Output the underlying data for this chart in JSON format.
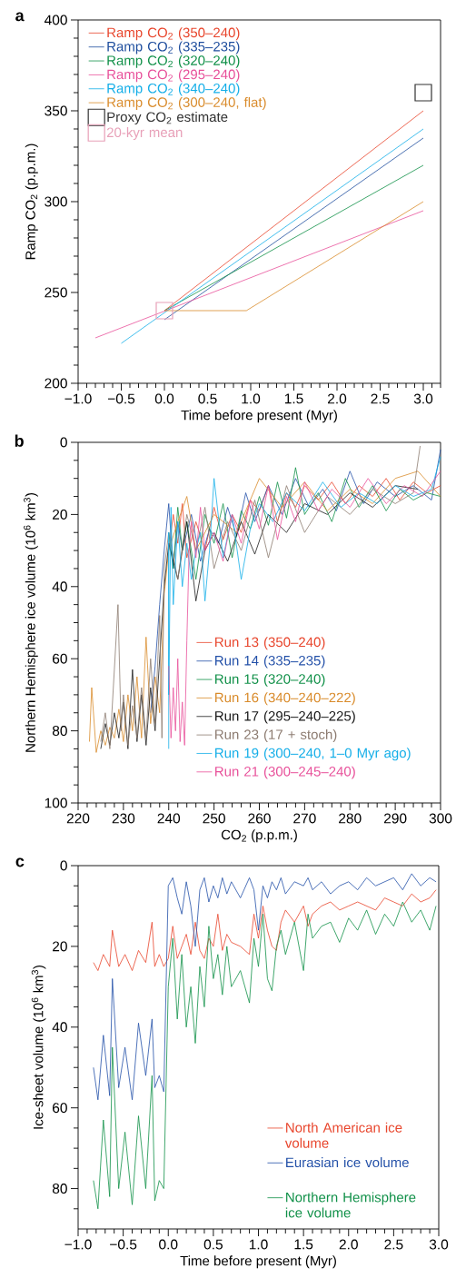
{
  "chart_data": [
    {
      "type": "line",
      "annotations": [
        "a"
      ],
      "xlabel": "Time before present (Myr)",
      "ylabel": "Ramp CO$_{2}$ (p.p.m.)",
      "xlim": [
        -1.0,
        3.2
      ],
      "ylim": [
        200,
        400
      ],
      "legend": "top left",
      "xticks": [
        {
          "value": -1.0,
          "label": "−1.0"
        },
        {
          "value": -0.9,
          "label": null
        },
        {
          "value": -0.8,
          "label": null
        },
        {
          "value": -0.7,
          "label": null
        },
        {
          "value": -0.6,
          "label": null
        },
        {
          "value": -0.5,
          "label": "−0.5"
        },
        {
          "value": -0.4,
          "label": null
        },
        {
          "value": -0.3,
          "label": null
        },
        {
          "value": -0.2,
          "label": null
        },
        {
          "value": -0.1,
          "label": null
        },
        {
          "value": 0.0,
          "label": "0.0"
        },
        {
          "value": 0.1,
          "label": null
        },
        {
          "value": 0.2,
          "label": null
        },
        {
          "value": 0.3,
          "label": null
        },
        {
          "value": 0.4,
          "label": null
        },
        {
          "value": 0.5,
          "label": "0.5"
        },
        {
          "value": 0.6,
          "label": null
        },
        {
          "value": 0.7,
          "label": null
        },
        {
          "value": 0.8,
          "label": null
        },
        {
          "value": 0.9,
          "label": null
        },
        {
          "value": 1.0,
          "label": "1.0"
        },
        {
          "value": 1.1,
          "label": null
        },
        {
          "value": 1.2,
          "label": null
        },
        {
          "value": 1.3,
          "label": null
        },
        {
          "value": 1.4,
          "label": null
        },
        {
          "value": 1.5,
          "label": "1.5"
        },
        {
          "value": 1.6,
          "label": null
        },
        {
          "value": 1.7,
          "label": null
        },
        {
          "value": 1.8,
          "label": null
        },
        {
          "value": 1.9,
          "label": null
        },
        {
          "value": 2.0,
          "label": "2.0"
        },
        {
          "value": 2.1,
          "label": null
        },
        {
          "value": 2.2,
          "label": null
        },
        {
          "value": 2.3,
          "label": null
        },
        {
          "value": 2.4,
          "label": null
        },
        {
          "value": 2.5,
          "label": "2.5"
        },
        {
          "value": 2.6,
          "label": null
        },
        {
          "value": 2.7,
          "label": null
        },
        {
          "value": 2.8,
          "label": null
        },
        {
          "value": 2.9,
          "label": null
        },
        {
          "value": 3.0,
          "label": "3.0"
        },
        {
          "value": 3.1,
          "label": null
        },
        {
          "value": 3.2,
          "label": null
        }
      ],
      "yticks": [
        200,
        {
          "value": 210,
          "label": null
        },
        {
          "value": 220,
          "label": null
        },
        {
          "value": 230,
          "label": null
        },
        {
          "value": 240,
          "label": null
        },
        250,
        {
          "value": 260,
          "label": null
        },
        {
          "value": 270,
          "label": null
        },
        {
          "value": 280,
          "label": null
        },
        {
          "value": 290,
          "label": null
        },
        300,
        {
          "value": 310,
          "label": null
        },
        {
          "value": 320,
          "label": null
        },
        {
          "value": 330,
          "label": null
        },
        {
          "value": 340,
          "label": null
        },
        350,
        {
          "value": 360,
          "label": null
        },
        {
          "value": 370,
          "label": null
        },
        {
          "value": 380,
          "label": null
        },
        {
          "value": 390,
          "label": null
        },
        400
      ],
      "series": [
        {
          "name": "Ramp CO$_{2}$ (350–240)",
          "color": "#e8452c",
          "x": [
            0.0,
            3.0
          ],
          "values": [
            240,
            350
          ]
        },
        {
          "name": "Ramp CO$_{2}$ (335–235)",
          "color": "#1f4e9e",
          "x": [
            0.0,
            3.0
          ],
          "values": [
            235,
            335
          ]
        },
        {
          "name": "Ramp CO$_{2}$ (320–240)",
          "color": "#109048",
          "x": [
            0.0,
            3.0
          ],
          "values": [
            240,
            320
          ]
        },
        {
          "name": "Ramp CO$_{2}$ (295–240)",
          "color": "#e8509a",
          "x": [
            -0.8,
            3.0
          ],
          "values": [
            225,
            295
          ]
        },
        {
          "name": "Ramp CO$_{2}$ (340–240)",
          "color": "#14aee8",
          "x": [
            -0.5,
            3.0
          ],
          "values": [
            222,
            340
          ]
        },
        {
          "name": "Ramp CO$_{2}$ (300–240, flat)",
          "color": "#d98b2b",
          "x": [
            0.0,
            0.95,
            3.0
          ],
          "values": [
            240,
            240,
            300
          ]
        },
        {
          "name": "Proxy CO$_{2}$ estimate",
          "type": "scatter",
          "marker": "square",
          "color": "#333333",
          "x": [
            3.0
          ],
          "values": [
            360
          ]
        },
        {
          "name": "20-kyr mean",
          "type": "scatter",
          "marker": "square",
          "color": "#e8a0b8",
          "x": [
            0.0
          ],
          "values": [
            240
          ]
        }
      ]
    },
    {
      "type": "line",
      "annotations": [
        "b"
      ],
      "xlabel": "CO$_{2}$ (p.p.m.)",
      "ylabel": "Northern Hemisphere ice volume (10$^{6}$ km$^{3}$)",
      "xlim": [
        220,
        300
      ],
      "ylim": [
        100,
        0
      ],
      "legend": "bottom right",
      "xticks": [
        220,
        {
          "value": 222,
          "label": null
        },
        {
          "value": 224,
          "label": null
        },
        {
          "value": 226,
          "label": null
        },
        {
          "value": 228,
          "label": null
        },
        230,
        {
          "value": 232,
          "label": null
        },
        {
          "value": 234,
          "label": null
        },
        {
          "value": 236,
          "label": null
        },
        {
          "value": 238,
          "label": null
        },
        240,
        {
          "value": 242,
          "label": null
        },
        {
          "value": 244,
          "label": null
        },
        {
          "value": 246,
          "label": null
        },
        {
          "value": 248,
          "label": null
        },
        250,
        {
          "value": 252,
          "label": null
        },
        {
          "value": 254,
          "label": null
        },
        {
          "value": 256,
          "label": null
        },
        {
          "value": 258,
          "label": null
        },
        260,
        {
          "value": 262,
          "label": null
        },
        {
          "value": 264,
          "label": null
        },
        {
          "value": 266,
          "label": null
        },
        {
          "value": 268,
          "label": null
        },
        270,
        {
          "value": 272,
          "label": null
        },
        {
          "value": 274,
          "label": null
        },
        {
          "value": 276,
          "label": null
        },
        {
          "value": 278,
          "label": null
        },
        280,
        {
          "value": 282,
          "label": null
        },
        {
          "value": 284,
          "label": null
        },
        {
          "value": 286,
          "label": null
        },
        {
          "value": 288,
          "label": null
        },
        290,
        {
          "value": 292,
          "label": null
        },
        {
          "value": 294,
          "label": null
        },
        {
          "value": 296,
          "label": null
        },
        {
          "value": 298,
          "label": null
        },
        300
      ],
      "yticks": [
        0,
        {
          "value": 5,
          "label": null
        },
        {
          "value": 10,
          "label": null
        },
        {
          "value": 15,
          "label": null
        },
        20,
        {
          "value": 25,
          "label": null
        },
        {
          "value": 30,
          "label": null
        },
        {
          "value": 35,
          "label": null
        },
        40,
        {
          "value": 45,
          "label": null
        },
        {
          "value": 50,
          "label": null
        },
        {
          "value": 55,
          "label": null
        },
        60,
        {
          "value": 65,
          "label": null
        },
        {
          "value": 70,
          "label": null
        },
        {
          "value": 75,
          "label": null
        },
        80,
        {
          "value": 85,
          "label": null
        },
        {
          "value": 90,
          "label": null
        },
        {
          "value": 95,
          "label": null
        },
        100
      ],
      "series": [
        {
          "name": "Run 13 (350–240)",
          "color": "#e8452c",
          "x": [
            240,
            241,
            242,
            243,
            244,
            246,
            248,
            250,
            252,
            254,
            256,
            258,
            260,
            262,
            264,
            266,
            268,
            270,
            273,
            276,
            279,
            282,
            285,
            288,
            291,
            294,
            297,
            300
          ],
          "values": [
            30,
            20,
            28,
            17,
            32,
            22,
            30,
            18,
            27,
            20,
            25,
            16,
            19,
            12,
            22,
            14,
            18,
            12,
            16,
            11,
            17,
            12,
            15,
            10,
            16,
            11,
            14,
            12
          ]
        },
        {
          "name": "Run 14 (335–235)",
          "color": "#2350a8",
          "x": [
            236,
            237,
            238,
            239,
            240,
            241,
            242,
            243,
            245,
            247,
            249,
            251,
            253,
            255,
            257,
            259,
            262,
            265,
            268,
            271,
            274,
            277,
            280,
            283,
            286,
            290,
            294,
            298,
            300
          ],
          "values": [
            75,
            62,
            45,
            30,
            17,
            35,
            22,
            30,
            20,
            33,
            24,
            28,
            18,
            26,
            14,
            22,
            12,
            20,
            10,
            18,
            13,
            19,
            8,
            17,
            11,
            15,
            12,
            16,
            2
          ]
        },
        {
          "name": "Run 15 (320–240)",
          "color": "#109048",
          "x": [
            240,
            241,
            242,
            243,
            244,
            246,
            248,
            250,
            252,
            254,
            256,
            258,
            260,
            262,
            264,
            266,
            268,
            270,
            273,
            276,
            279,
            282,
            285,
            288,
            291,
            294,
            297,
            300
          ],
          "values": [
            25,
            35,
            18,
            30,
            22,
            38,
            20,
            28,
            17,
            32,
            19,
            24,
            15,
            23,
            11,
            21,
            7,
            20,
            14,
            22,
            10,
            18,
            12,
            19,
            13,
            16,
            14,
            15
          ]
        },
        {
          "name": "Run 16 (340–240–222)",
          "color": "#d98b2b",
          "x": [
            222.5,
            223,
            224,
            225,
            226,
            227,
            228,
            229,
            230,
            231,
            232,
            233,
            234,
            235,
            236,
            237,
            238,
            239,
            240,
            242,
            244,
            246,
            250,
            255,
            260,
            265,
            270,
            275,
            280,
            285,
            290,
            295,
            300
          ],
          "values": [
            83,
            68,
            86,
            80,
            84,
            79,
            82,
            74,
            83,
            70,
            80,
            65,
            82,
            54,
            78,
            65,
            75,
            42,
            30,
            22,
            15,
            30,
            20,
            25,
            10,
            18,
            11,
            19,
            13,
            17,
            10,
            8,
            15
          ]
        },
        {
          "name": "Run 17 (295–240–225)",
          "color": "#1a1a1a",
          "x": [
            225,
            226,
            227,
            228,
            229,
            230,
            231,
            232,
            233,
            234,
            235,
            236,
            237,
            238,
            239,
            240,
            242,
            244,
            246,
            248,
            250,
            253,
            256,
            259,
            262,
            266,
            270,
            275,
            280,
            285,
            290,
            295
          ],
          "values": [
            85,
            78,
            84,
            75,
            82,
            72,
            85,
            63,
            83,
            70,
            84,
            68,
            80,
            60,
            40,
            28,
            38,
            22,
            44,
            30,
            25,
            33,
            22,
            31,
            20,
            25,
            17,
            20,
            14,
            18,
            12,
            13
          ]
        },
        {
          "name": "Run 23 (17 + stoch)",
          "color": "#8c7b70",
          "x": [
            225,
            226,
            227,
            228,
            228.8,
            229.5,
            230,
            231,
            232,
            233,
            234,
            235,
            236,
            237,
            238,
            238.5,
            239,
            240,
            242,
            244,
            246,
            248,
            250,
            253,
            256,
            259,
            262,
            266,
            270,
            275,
            280,
            285,
            290,
            294,
            295.5
          ],
          "values": [
            83,
            75,
            85,
            63,
            45,
            80,
            70,
            84,
            73,
            82,
            68,
            82,
            60,
            78,
            48,
            82,
            35,
            25,
            38,
            20,
            30,
            18,
            35,
            22,
            30,
            16,
            32,
            12,
            25,
            15,
            20,
            13,
            17,
            14,
            1
          ]
        },
        {
          "name": "Run 19 (300–240, 1–0 Myr ago)",
          "color": "#14aee8",
          "x": [
            240,
            240,
            240,
            240.5,
            241,
            242,
            243,
            244,
            245,
            246,
            247,
            248,
            249,
            250,
            252,
            254,
            256,
            258,
            260,
            263,
            266,
            270,
            274,
            278,
            282,
            286,
            290,
            294,
            298,
            300
          ],
          "values": [
            85,
            25,
            70,
            18,
            45,
            22,
            40,
            28,
            38,
            30,
            25,
            44,
            30,
            10,
            32,
            20,
            38,
            24,
            17,
            22,
            14,
            19,
            11,
            18,
            14,
            17,
            12,
            15,
            13,
            4
          ]
        },
        {
          "name": "Run 21 (300–245–240)",
          "color": "#e8509a",
          "x": [
            240,
            240.5,
            241,
            241.5,
            242,
            242.5,
            243,
            243.5,
            244,
            244.5,
            245,
            246,
            247,
            248,
            250,
            252,
            254,
            256,
            258,
            260,
            262,
            264,
            266,
            268,
            270,
            273,
            276,
            280,
            284,
            288,
            292,
            296,
            300
          ],
          "values": [
            62,
            82,
            68,
            80,
            60,
            83,
            72,
            84,
            55,
            30,
            22,
            32,
            18,
            30,
            25,
            33,
            20,
            28,
            16,
            24,
            12,
            27,
            15,
            22,
            11,
            19,
            13,
            18,
            10,
            17,
            12,
            15,
            8
          ]
        }
      ]
    },
    {
      "type": "line",
      "annotations": [
        "c"
      ],
      "xlabel": "Time before present (Myr)",
      "ylabel": "Ice-sheet volume (10$^{6}$ km$^{3}$)",
      "xlim": [
        -1.0,
        3.0
      ],
      "ylim": [
        90,
        0
      ],
      "legend": "bottom right",
      "xticks": [
        {
          "value": -1.0,
          "label": "−1.0"
        },
        {
          "value": -0.9,
          "label": null
        },
        {
          "value": -0.8,
          "label": null
        },
        {
          "value": -0.7,
          "label": null
        },
        {
          "value": -0.6,
          "label": null
        },
        {
          "value": -0.5,
          "label": "−0.5"
        },
        {
          "value": -0.4,
          "label": null
        },
        {
          "value": -0.3,
          "label": null
        },
        {
          "value": -0.2,
          "label": null
        },
        {
          "value": -0.1,
          "label": null
        },
        {
          "value": 0.0,
          "label": "0.0"
        },
        {
          "value": 0.1,
          "label": null
        },
        {
          "value": 0.2,
          "label": null
        },
        {
          "value": 0.3,
          "label": null
        },
        {
          "value": 0.4,
          "label": null
        },
        {
          "value": 0.5,
          "label": "0.5"
        },
        {
          "value": 0.6,
          "label": null
        },
        {
          "value": 0.7,
          "label": null
        },
        {
          "value": 0.8,
          "label": null
        },
        {
          "value": 0.9,
          "label": null
        },
        {
          "value": 1.0,
          "label": "1.0"
        },
        {
          "value": 1.1,
          "label": null
        },
        {
          "value": 1.2,
          "label": null
        },
        {
          "value": 1.3,
          "label": null
        },
        {
          "value": 1.4,
          "label": null
        },
        {
          "value": 1.5,
          "label": "1.5"
        },
        {
          "value": 1.6,
          "label": null
        },
        {
          "value": 1.7,
          "label": null
        },
        {
          "value": 1.8,
          "label": null
        },
        {
          "value": 1.9,
          "label": null
        },
        {
          "value": 2.0,
          "label": "2.0"
        },
        {
          "value": 2.1,
          "label": null
        },
        {
          "value": 2.2,
          "label": null
        },
        {
          "value": 2.3,
          "label": null
        },
        {
          "value": 2.4,
          "label": null
        },
        {
          "value": 2.5,
          "label": "2.5"
        },
        {
          "value": 2.6,
          "label": null
        },
        {
          "value": 2.7,
          "label": null
        },
        {
          "value": 2.8,
          "label": null
        },
        {
          "value": 2.9,
          "label": null
        },
        {
          "value": 3.0,
          "label": "3.0"
        }
      ],
      "yticks": [
        0,
        {
          "value": 5,
          "label": null
        },
        {
          "value": 10,
          "label": null
        },
        {
          "value": 15,
          "label": null
        },
        20,
        {
          "value": 25,
          "label": null
        },
        {
          "value": 30,
          "label": null
        },
        {
          "value": 35,
          "label": null
        },
        40,
        {
          "value": 45,
          "label": null
        },
        {
          "value": 50,
          "label": null
        },
        {
          "value": 55,
          "label": null
        },
        60,
        {
          "value": 65,
          "label": null
        },
        {
          "value": 70,
          "label": null
        },
        {
          "value": 75,
          "label": null
        },
        80,
        {
          "value": 85,
          "label": null
        }
      ],
      "x": [
        -0.83,
        -0.78,
        -0.72,
        -0.65,
        -0.62,
        -0.55,
        -0.48,
        -0.4,
        -0.33,
        -0.25,
        -0.18,
        -0.15,
        -0.1,
        -0.05,
        0.0,
        0.05,
        0.1,
        0.15,
        0.2,
        0.25,
        0.3,
        0.35,
        0.4,
        0.45,
        0.5,
        0.55,
        0.6,
        0.65,
        0.7,
        0.8,
        0.9,
        0.95,
        1.0,
        1.05,
        1.1,
        1.15,
        1.2,
        1.25,
        1.3,
        1.4,
        1.5,
        1.55,
        1.6,
        1.7,
        1.8,
        1.9,
        2.0,
        2.1,
        2.2,
        2.3,
        2.4,
        2.5,
        2.6,
        2.7,
        2.8,
        2.9,
        2.97
      ],
      "series": [
        {
          "name": "North American ice volume",
          "color": "#e8452c",
          "values": [
            24,
            26,
            22,
            25,
            16,
            25,
            22,
            26,
            21,
            24,
            14,
            25,
            22,
            25,
            23,
            15,
            23,
            20,
            17,
            22,
            14,
            21,
            23,
            18,
            20,
            12,
            21,
            17,
            19,
            20,
            22,
            12,
            18,
            10,
            16,
            20,
            21,
            14,
            11,
            14,
            10,
            15,
            12,
            10,
            9,
            11,
            10,
            9,
            10,
            11,
            8,
            9,
            10,
            7,
            9,
            8,
            6
          ]
        },
        {
          "name": "Eurasian ice volume",
          "color": "#2350a8",
          "values": [
            50,
            58,
            42,
            57,
            28,
            55,
            45,
            58,
            39,
            52,
            38,
            55,
            52,
            56,
            5,
            3,
            8,
            12,
            4,
            10,
            20,
            6,
            3,
            9,
            5,
            8,
            3,
            7,
            4,
            8,
            3,
            6,
            16,
            5,
            8,
            4,
            6,
            3,
            7,
            4,
            5,
            3,
            6,
            4,
            7,
            5,
            4,
            6,
            3,
            5,
            4,
            3,
            6,
            2,
            5,
            3,
            4
          ]
        },
        {
          "name": "Northern Hemisphere ice volume",
          "color": "#109048",
          "values": [
            78,
            85,
            63,
            82,
            45,
            80,
            66,
            84,
            62,
            80,
            52,
            83,
            78,
            80,
            30,
            18,
            38,
            22,
            40,
            30,
            44,
            25,
            35,
            15,
            28,
            22,
            32,
            20,
            30,
            26,
            34,
            18,
            25,
            12,
            28,
            31,
            20,
            16,
            22,
            14,
            26,
            12,
            18,
            15,
            14,
            19,
            13,
            16,
            11,
            17,
            12,
            15,
            9,
            14,
            11,
            16,
            10
          ]
        }
      ]
    }
  ]
}
